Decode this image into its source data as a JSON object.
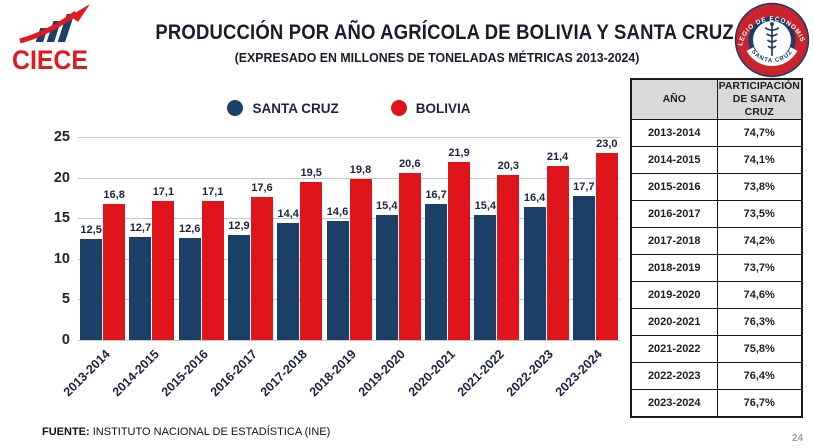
{
  "logo": {
    "text": "CIECE"
  },
  "header": {
    "title": "PRODUCCIÓN POR AÑO AGRÍCOLA DE BOLIVIA Y SANTA CRUZ",
    "subtitle": "(EXPRESADO EN MILLONES DE TONELADAS MÉTRICAS 2013-2024)"
  },
  "seal": {
    "top_text": "COLEGIO DE ECONOMISTAS",
    "bottom_text": "SANTA CRUZ"
  },
  "colors": {
    "santa_cruz": "#1B3F66",
    "bolivia": "#E0151B",
    "grid": "#c9c9c9",
    "logo_red": "#E01A20",
    "seal_red": "#C8242B",
    "seal_navy": "#1E3A66"
  },
  "chart_data": {
    "type": "bar",
    "categories": [
      "2013-2014",
      "2014-2015",
      "2015-2016",
      "2016-2017",
      "2017-2018",
      "2018-2019",
      "2019-2020",
      "2020-2021",
      "2021-2022",
      "2022-2023",
      "2023-2024"
    ],
    "series": [
      {
        "name": "SANTA CRUZ",
        "color": "#1B3F66",
        "values": [
          12.5,
          12.7,
          12.6,
          12.9,
          14.4,
          14.6,
          15.4,
          16.7,
          15.4,
          16.4,
          17.7
        ]
      },
      {
        "name": "BOLIVIA",
        "color": "#E0151B",
        "values": [
          16.8,
          17.1,
          17.1,
          17.6,
          19.5,
          19.8,
          20.6,
          21.9,
          20.3,
          21.4,
          23.0
        ]
      }
    ],
    "title": "PRODUCCIÓN POR AÑO AGRÍCOLA DE BOLIVIA Y SANTA CRUZ",
    "subtitle": "(EXPRESADO EN MILLONES DE TONELADAS MÉTRICAS 2013-2024)",
    "xlabel": "",
    "ylabel": "",
    "ylim": [
      0,
      25
    ],
    "yticks": [
      0,
      5,
      10,
      15,
      20,
      25
    ],
    "grid": true,
    "legend_position": "top",
    "decimal_separator": ","
  },
  "legend": [
    {
      "label": "SANTA CRUZ",
      "color": "#1B3F66"
    },
    {
      "label": "BOLIVIA",
      "color": "#E0151B"
    }
  ],
  "table": {
    "headers": [
      "AÑO",
      "PARTICIPACIÓN DE SANTA CRUZ"
    ],
    "rows": [
      [
        "2013-2014",
        "74,7%"
      ],
      [
        "2014-2015",
        "74,1%"
      ],
      [
        "2015-2016",
        "73,8%"
      ],
      [
        "2016-2017",
        "73,5%"
      ],
      [
        "2017-2018",
        "74,2%"
      ],
      [
        "2018-2019",
        "73,7%"
      ],
      [
        "2019-2020",
        "74,6%"
      ],
      [
        "2020-2021",
        "76,3%"
      ],
      [
        "2021-2022",
        "75,8%"
      ],
      [
        "2022-2023",
        "76,4%"
      ],
      [
        "2023-2024",
        "76,7%"
      ]
    ]
  },
  "footer": {
    "source_label": "FUENTE:",
    "source_text": " INSTITUTO NACIONAL DE ESTADÍSTICA (INE)"
  },
  "page_number": "24"
}
